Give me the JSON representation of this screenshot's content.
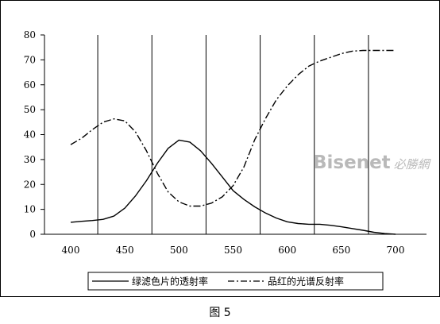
{
  "chart_data": {
    "type": "line",
    "title": "",
    "xlabel": "",
    "ylabel": "",
    "xlim": [
      400,
      700
    ],
    "ylim": [
      0,
      80
    ],
    "x_ticks": [
      "400",
      "450",
      "500",
      "550",
      "600",
      "650",
      "700"
    ],
    "y_ticks": [
      "0",
      "10",
      "20",
      "30",
      "40",
      "50",
      "60",
      "70",
      "80"
    ],
    "vertical_lines_x": [
      425,
      475,
      525,
      575,
      625,
      675
    ],
    "grid": false,
    "legend_position": "bottom",
    "series": [
      {
        "name": "绿滤色片的透射率",
        "style": "solid",
        "x": [
          400,
          410,
          420,
          430,
          440,
          450,
          460,
          470,
          480,
          490,
          500,
          510,
          520,
          530,
          540,
          550,
          560,
          570,
          580,
          590,
          600,
          610,
          620,
          630,
          640,
          650,
          660,
          670,
          680,
          690,
          700
        ],
        "y": [
          4.8,
          5.2,
          5.5,
          6,
          7.3,
          10.5,
          15.5,
          21.5,
          28.5,
          34.5,
          37.8,
          37,
          33.5,
          28.5,
          23,
          17.5,
          14,
          11,
          8.5,
          6.5,
          5,
          4.3,
          4,
          4,
          3.6,
          3,
          2.3,
          1.6,
          0.8,
          0.3,
          0
        ]
      },
      {
        "name": "品红的光谱反射率",
        "style": "dashdot",
        "x": [
          400,
          410,
          420,
          430,
          440,
          450,
          460,
          470,
          480,
          490,
          500,
          510,
          520,
          530,
          540,
          550,
          560,
          570,
          580,
          590,
          600,
          610,
          620,
          630,
          640,
          650,
          660,
          670,
          680,
          690,
          700
        ],
        "y": [
          36,
          38.5,
          42,
          45,
          46.3,
          45.5,
          41,
          33.5,
          24.5,
          17,
          13,
          11.3,
          11.3,
          12.5,
          15,
          19.5,
          27,
          38,
          46.5,
          54,
          59.5,
          64,
          67.5,
          69.5,
          71,
          72.5,
          73.5,
          73.8,
          73.8,
          73.8,
          73.8
        ]
      }
    ]
  },
  "watermark": {
    "main": "Bisenet",
    "cn": "必勝網"
  },
  "caption": "图 5",
  "colors": {
    "line": "#000000",
    "watermark": "#b9b9b9"
  }
}
